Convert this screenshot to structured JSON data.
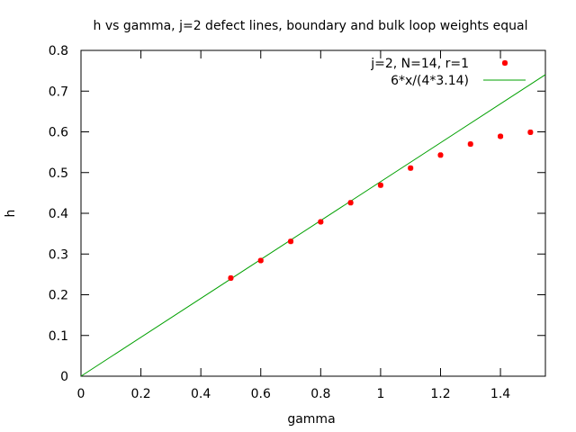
{
  "chart_data": {
    "type": "scatter",
    "title": "h vs gamma, j=2 defect lines, boundary and bulk loop weights equal",
    "xlabel": "gamma",
    "ylabel": "h",
    "xlim": [
      0,
      1.55
    ],
    "ylim": [
      0,
      0.8
    ],
    "x_ticks": [
      0,
      0.2,
      0.4,
      0.6,
      0.8,
      1,
      1.2,
      1.4
    ],
    "x_tick_labels": [
      "0",
      "0.2",
      "0.4",
      "0.6",
      "0.8",
      "1",
      "1.2",
      "1.4"
    ],
    "y_ticks": [
      0,
      0.1,
      0.2,
      0.3,
      0.4,
      0.5,
      0.6,
      0.7,
      0.8
    ],
    "y_tick_labels": [
      "0",
      "0.1",
      "0.2",
      "0.3",
      "0.4",
      "0.5",
      "0.6",
      "0.7",
      "0.8"
    ],
    "grid": false,
    "legend_position": "top-right",
    "series": [
      {
        "name": "j=2, N=14, r=1",
        "kind": "points",
        "color": "#ff0000",
        "x": [
          0.5,
          0.6,
          0.7,
          0.8,
          0.9,
          1.0,
          1.1,
          1.2,
          1.3,
          1.4,
          1.5
        ],
        "y": [
          0.241,
          0.284,
          0.331,
          0.379,
          0.426,
          0.469,
          0.511,
          0.543,
          0.57,
          0.589,
          0.599
        ]
      },
      {
        "name": "6*x/(4*3.14)",
        "kind": "function",
        "color": "#00a000",
        "slope": 0.477707
      }
    ]
  }
}
